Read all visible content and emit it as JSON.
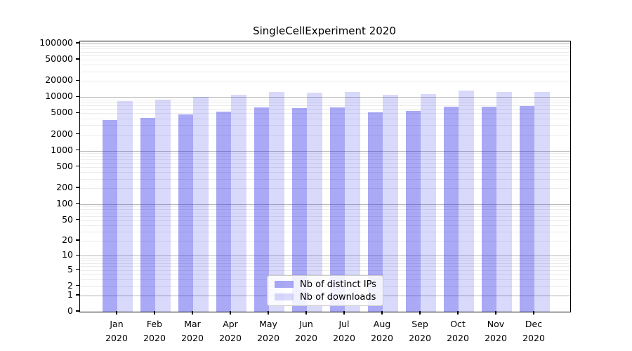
{
  "chart_data": {
    "type": "bar",
    "title": "SingleCellExperiment 2020",
    "categories": [
      "Jan",
      "Feb",
      "Mar",
      "Apr",
      "May",
      "Jun",
      "Jul",
      "Aug",
      "Sep",
      "Oct",
      "Nov",
      "Dec"
    ],
    "x_year": "2020",
    "series": [
      {
        "name": "Nb of distinct IPs",
        "color": "rgba(30,30,230,0.38)",
        "values": [
          3700,
          4100,
          4800,
          5400,
          6400,
          6200,
          6400,
          5300,
          5600,
          6700,
          6700,
          6900
        ]
      },
      {
        "name": "Nb of downloads",
        "color": "rgba(30,30,230,0.17)",
        "values": [
          8500,
          9100,
          10000,
          11200,
          12600,
          12000,
          12400,
          11200,
          11600,
          13100,
          12700,
          12500
        ]
      }
    ],
    "y_ticks": [
      0,
      1,
      2,
      5,
      10,
      20,
      50,
      100,
      200,
      500,
      1000,
      2000,
      5000,
      10000,
      20000,
      50000,
      100000
    ],
    "scale": "log1p",
    "ylim": [
      0,
      100000
    ],
    "grid": true,
    "legend_position": "bottom-center",
    "colors": {
      "bar_dark": "#a8a8f5",
      "bar_light": "#d8d8f8",
      "grid_major": "#b3b3b3",
      "grid_minor": "#ebebeb",
      "axis": "#000000"
    }
  }
}
